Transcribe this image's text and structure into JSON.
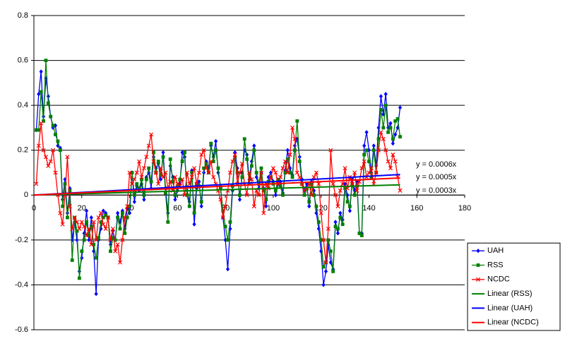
{
  "chart_data": {
    "type": "line",
    "x": [
      1,
      2,
      3,
      4,
      5,
      6,
      7,
      8,
      9,
      10,
      11,
      12,
      13,
      14,
      15,
      16,
      17,
      18,
      19,
      20,
      21,
      22,
      23,
      24,
      25,
      26,
      27,
      28,
      29,
      30,
      31,
      32,
      33,
      34,
      35,
      36,
      37,
      38,
      39,
      40,
      41,
      42,
      43,
      44,
      45,
      46,
      47,
      48,
      49,
      50,
      51,
      52,
      53,
      54,
      55,
      56,
      57,
      58,
      59,
      60,
      61,
      62,
      63,
      64,
      65,
      66,
      67,
      68,
      69,
      70,
      71,
      72,
      73,
      74,
      75,
      76,
      77,
      78,
      79,
      80,
      81,
      82,
      83,
      84,
      85,
      86,
      87,
      88,
      89,
      90,
      91,
      92,
      93,
      94,
      95,
      96,
      97,
      98,
      99,
      100,
      101,
      102,
      103,
      104,
      105,
      106,
      107,
      108,
      109,
      110,
      111,
      112,
      113,
      114,
      115,
      116,
      117,
      118,
      119,
      120,
      121,
      122,
      123,
      124,
      125,
      126,
      127,
      128,
      129,
      130,
      131,
      132,
      133,
      134,
      135,
      136,
      137,
      138,
      139,
      140,
      141,
      142,
      143,
      144,
      145,
      146,
      147,
      148,
      149,
      150,
      151,
      152,
      153
    ],
    "series": [
      {
        "name": "UAH",
        "color": "#0000ff",
        "marker": "diamond",
        "values": [
          0.29,
          0.45,
          0.55,
          0.35,
          0.52,
          0.44,
          0.35,
          0.3,
          0.31,
          0.22,
          0.21,
          -0.02,
          0.07,
          -0.08,
          0.03,
          -0.2,
          -0.12,
          -0.2,
          -0.34,
          -0.28,
          -0.17,
          -0.07,
          -0.2,
          -0.1,
          -0.25,
          -0.44,
          -0.2,
          -0.15,
          -0.07,
          -0.08,
          -0.1,
          -0.22,
          -0.16,
          -0.2,
          -0.08,
          -0.12,
          -0.07,
          -0.15,
          -0.06,
          -0.08,
          0.1,
          -0.03,
          0.04,
          0.02,
          0.05,
          -0.02,
          0.08,
          0.1,
          0.03,
          0.17,
          0.12,
          0.14,
          0.07,
          0.19,
          0.03,
          -0.08,
          0.13,
          0.08,
          -0.02,
          0.02,
          0.05,
          0.19,
          0.17,
          0.02,
          -0.03,
          0.11,
          -0.13,
          0.03,
          0.06,
          -0.05,
          0.1,
          0.15,
          0.12,
          0.22,
          0.17,
          0.24,
          0.1,
          0.04,
          -0.1,
          -0.2,
          -0.33,
          -0.15,
          0.02,
          0.19,
          0.12,
          -0.02,
          0.1,
          0.2,
          0.18,
          0.07,
          0.15,
          0.22,
          0.08,
          0.03,
          0.1,
          0.03,
          -0.05,
          0.08,
          0.1,
          0.06,
          0.0,
          0.05,
          0.06,
          0.01,
          0.11,
          0.2,
          0.12,
          0.09,
          0.22,
          0.25,
          0.17,
          0.07,
          0.02,
          0.05,
          -0.05,
          0.06,
          0.02,
          -0.08,
          -0.15,
          -0.25,
          -0.4,
          -0.34,
          -0.22,
          -0.3,
          -0.33,
          -0.12,
          -0.17,
          -0.08,
          -0.11,
          0.05,
          0.0,
          -0.07,
          0.07,
          0.02,
          0.06,
          -0.17,
          -0.17,
          0.22,
          0.28,
          0.2,
          0.1,
          0.22,
          0.13,
          0.3,
          0.44,
          0.36,
          0.45,
          0.3,
          0.32,
          0.23,
          0.27,
          0.3,
          0.39
        ]
      },
      {
        "name": "RSS",
        "color": "#008000",
        "marker": "square",
        "values": [
          0.29,
          0.29,
          0.46,
          0.33,
          0.6,
          0.41,
          0.35,
          0.31,
          0.27,
          0.24,
          0.2,
          -0.05,
          0.05,
          -0.1,
          0.02,
          -0.29,
          -0.1,
          -0.16,
          -0.37,
          -0.25,
          -0.2,
          -0.12,
          -0.18,
          -0.14,
          -0.22,
          -0.28,
          -0.19,
          -0.12,
          -0.1,
          -0.09,
          -0.1,
          -0.25,
          -0.19,
          -0.2,
          -0.1,
          -0.15,
          -0.08,
          -0.17,
          -0.1,
          -0.05,
          0.1,
          0.0,
          0.05,
          0.03,
          0.07,
          0.0,
          0.07,
          0.12,
          0.06,
          0.19,
          0.1,
          0.15,
          0.09,
          0.17,
          0.01,
          -0.12,
          0.16,
          0.06,
          0.0,
          0.04,
          0.07,
          0.15,
          0.19,
          0.0,
          -0.05,
          0.1,
          -0.08,
          0.05,
          0.04,
          -0.03,
          0.12,
          0.14,
          0.1,
          0.23,
          0.15,
          0.2,
          0.12,
          0.03,
          -0.07,
          -0.14,
          -0.2,
          -0.12,
          0.04,
          0.17,
          0.1,
          0.0,
          0.08,
          0.25,
          0.16,
          0.05,
          0.13,
          0.2,
          0.1,
          0.05,
          0.12,
          0.02,
          -0.02,
          0.06,
          0.08,
          0.05,
          0.02,
          0.07,
          0.04,
          0.0,
          0.1,
          0.16,
          0.1,
          0.08,
          0.2,
          0.33,
          0.15,
          0.05,
          0.0,
          0.03,
          -0.03,
          0.05,
          0.0,
          -0.05,
          -0.12,
          -0.2,
          -0.32,
          -0.3,
          -0.2,
          -0.25,
          -0.34,
          -0.14,
          -0.15,
          -0.1,
          -0.13,
          0.03,
          -0.03,
          -0.05,
          0.05,
          0.0,
          0.04,
          -0.17,
          -0.18,
          0.18,
          0.2,
          0.15,
          0.08,
          0.2,
          0.1,
          0.25,
          0.38,
          0.3,
          0.4,
          0.28,
          0.3,
          0.25,
          0.33,
          0.34,
          0.26
        ]
      },
      {
        "name": "NCDC",
        "color": "#ff0000",
        "marker": "x",
        "values": [
          0.05,
          0.22,
          0.32,
          0.2,
          0.17,
          0.13,
          0.15,
          0.2,
          0.1,
          0.0,
          -0.08,
          -0.13,
          0.0,
          0.17,
          -0.05,
          -0.15,
          -0.1,
          -0.12,
          -0.15,
          -0.12,
          -0.14,
          -0.18,
          -0.15,
          -0.22,
          -0.12,
          -0.2,
          -0.1,
          -0.08,
          -0.13,
          -0.15,
          -0.1,
          -0.2,
          -0.15,
          -0.25,
          -0.22,
          -0.3,
          -0.2,
          -0.1,
          -0.05,
          0.1,
          0.05,
          0.07,
          0.1,
          0.15,
          0.08,
          0.12,
          0.17,
          0.22,
          0.27,
          0.15,
          0.1,
          0.05,
          0.12,
          0.08,
          0.1,
          0.03,
          0.06,
          0.02,
          0.08,
          0.05,
          0.04,
          0.07,
          0.0,
          0.1,
          0.05,
          0.08,
          0.12,
          0.05,
          0.1,
          0.18,
          0.2,
          0.12,
          0.1,
          0.15,
          0.08,
          0.05,
          0.02,
          -0.02,
          -0.1,
          -0.05,
          0.02,
          0.1,
          0.15,
          0.18,
          0.05,
          0.1,
          0.14,
          0.05,
          0.0,
          0.1,
          0.07,
          -0.05,
          0.02,
          0.0,
          0.1,
          -0.08,
          0.05,
          0.03,
          0.08,
          0.12,
          0.1,
          0.05,
          0.08,
          0.12,
          0.15,
          0.1,
          0.18,
          0.3,
          0.25,
          0.1,
          0.08,
          0.05,
          0.02,
          0.03,
          0.05,
          0.0,
          0.08,
          0.1,
          0.05,
          -0.08,
          -0.2,
          -0.3,
          -0.15,
          0.2,
          0.05,
          0.0,
          -0.05,
          0.02,
          0.05,
          0.12,
          0.03,
          0.08,
          0.05,
          0.1,
          0.02,
          0.06,
          0.12,
          0.15,
          0.08,
          0.1,
          0.12,
          0.05,
          0.1,
          0.2,
          0.28,
          0.25,
          0.2,
          0.15,
          0.12,
          0.18,
          0.15,
          0.08,
          0.02
        ]
      }
    ],
    "trendlines": [
      {
        "name": "Linear (RSS)",
        "color": "#008000",
        "slope": 0.0003,
        "label": "y = 0.0003x"
      },
      {
        "name": "Linear (UAH)",
        "color": "#0000ff",
        "slope": 0.0006,
        "label": "y = 0.0006x"
      },
      {
        "name": "Linear (NCDC)",
        "color": "#ff0000",
        "slope": 0.0005,
        "label": "y = 0.0005x"
      }
    ],
    "xlim": [
      0,
      180
    ],
    "xticks": [
      0,
      20,
      40,
      60,
      80,
      100,
      120,
      140,
      160,
      180
    ],
    "ylim": [
      -0.6,
      0.8
    ],
    "yticks": [
      -0.6,
      -0.4,
      -0.2,
      0,
      0.2,
      0.4,
      0.6,
      0.8
    ],
    "grid": true,
    "legend": "bottom-right"
  }
}
